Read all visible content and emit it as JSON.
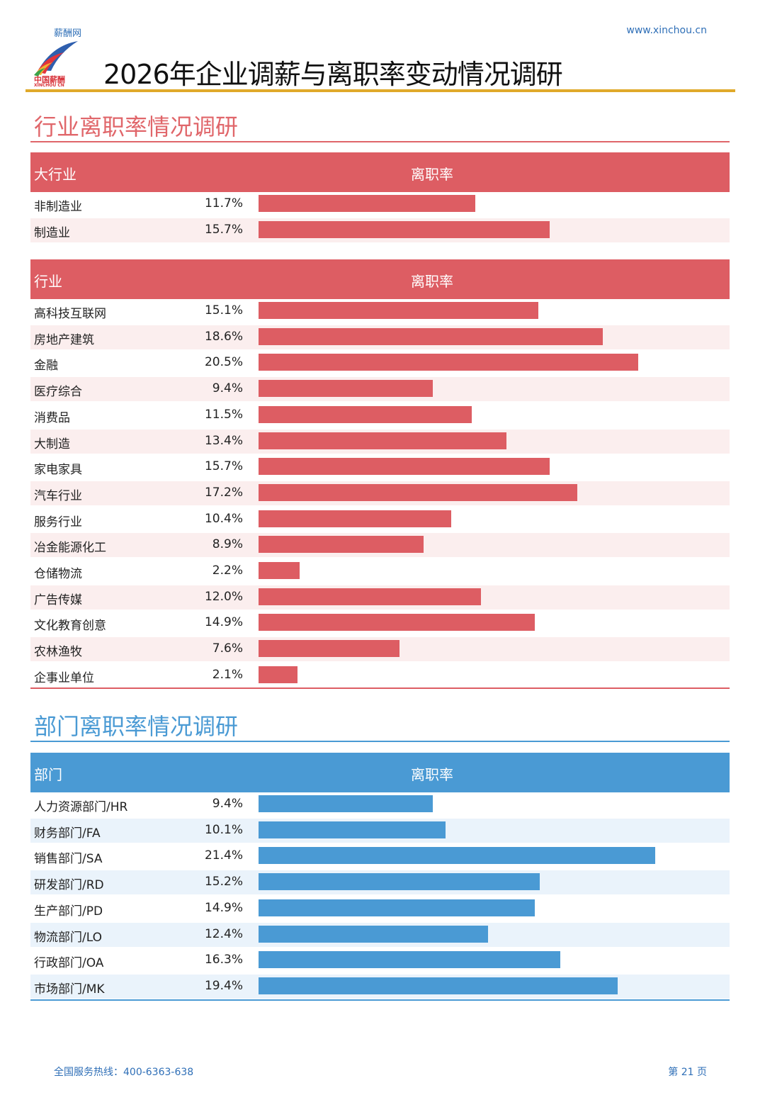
{
  "header": {
    "site_name": "薪酬网",
    "site_url": "www.xinchou.cn",
    "logo_text": "中国薪酬",
    "logo_subtext": "XINCHOU CN",
    "title": "2026年企业调薪与离职率变动情况调研"
  },
  "colors": {
    "red": "#dd5d63",
    "red_stripe": "#fbeeee",
    "blue": "#4a9ad4",
    "blue_stripe": "#eaf3fb",
    "red_title": "#e0666a",
    "blue_title": "#4a9ad4",
    "gold": "#e0a92a"
  },
  "industry_section": {
    "title": "行业离职率情况调研",
    "table1": {
      "col_left": "大行业",
      "col_right": "离职率"
    },
    "table2": {
      "col_left": "行业",
      "col_right": "离职率"
    }
  },
  "department_section": {
    "title": "部门离职率情况调研",
    "table": {
      "col_left": "部门",
      "col_right": "离职率"
    }
  },
  "chart_data": [
    {
      "type": "bar",
      "orientation": "horizontal",
      "categories": [
        "非制造业",
        "制造业"
      ],
      "values": [
        11.7,
        15.7
      ],
      "labels": [
        "11.7%",
        "15.7%"
      ],
      "unit": "%"
    },
    {
      "type": "bar",
      "orientation": "horizontal",
      "categories": [
        "高科技互联网",
        "房地产建筑",
        "金融",
        "医疗综合",
        "消费品",
        "大制造",
        "家电家具",
        "汽车行业",
        "服务行业",
        "冶金能源化工",
        "仓储物流",
        "广告传媒",
        "文化教育创意",
        "农林渔牧",
        "企事业单位"
      ],
      "values": [
        15.1,
        18.6,
        20.5,
        9.4,
        11.5,
        13.4,
        15.7,
        17.2,
        10.4,
        8.9,
        2.2,
        12.0,
        14.9,
        7.6,
        2.1
      ],
      "labels": [
        "15.1%",
        "18.6%",
        "20.5%",
        "9.4%",
        "11.5%",
        "13.4%",
        "15.7%",
        "17.2%",
        "10.4%",
        "8.9%",
        "2.2%",
        "12.0%",
        "14.9%",
        "7.6%",
        "2.1%"
      ],
      "unit": "%"
    },
    {
      "type": "bar",
      "orientation": "horizontal",
      "categories": [
        "人力资源部门/HR",
        "财务部门/FA",
        "销售部门/SA",
        "研发部门/RD",
        "生产部门/PD",
        "物流部门/LO",
        "行政部门/OA",
        "市场部门/MK"
      ],
      "values": [
        9.4,
        10.1,
        21.4,
        15.2,
        14.9,
        12.4,
        16.3,
        19.4
      ],
      "labels": [
        "9.4%",
        "10.1%",
        "21.4%",
        "15.2%",
        "14.9%",
        "12.4%",
        "16.3%",
        "19.4%"
      ],
      "unit": "%"
    }
  ],
  "footer": {
    "hotline": "全国服务热线：400-6363-638",
    "page": "第 21 页"
  }
}
